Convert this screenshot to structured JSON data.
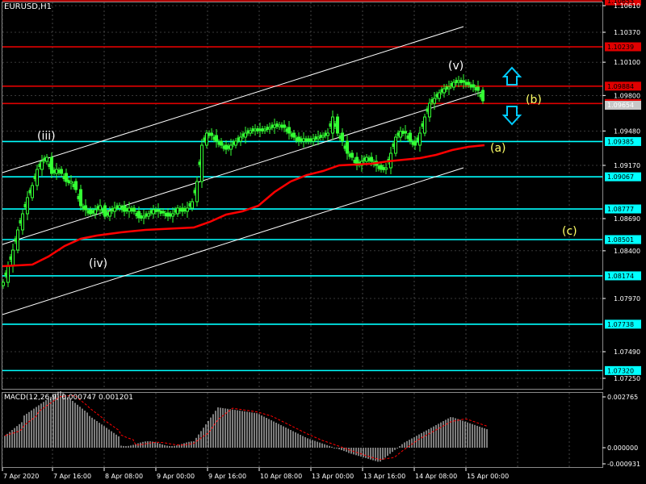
{
  "window": {
    "symbol_label": "EURUSD,H1",
    "indicator_label": "MACD(12,26,9) 0.000747 0.001201"
  },
  "price_axis": {
    "ticks": [
      "1.10610",
      "1.10370",
      "1.10100",
      "1.09800",
      "1.09480",
      "1.09170",
      "1.08690",
      "1.08400",
      "1.07970",
      "1.07490",
      "1.07250"
    ],
    "current_price": "1.09654"
  },
  "macd_axis": {
    "ticks": [
      "0.002765",
      "0.000000",
      "-0.000931"
    ]
  },
  "time_axis": {
    "labels": [
      "7 Apr 2020",
      "7 Apr 16:00",
      "8 Apr 08:00",
      "9 Apr 00:00",
      "9 Apr 16:00",
      "10 Apr 08:00",
      "13 Apr 00:00",
      "13 Apr 16:00",
      "14 Apr 08:00",
      "15 Apr 00:00"
    ]
  },
  "levels": [
    {
      "price": "1.10653",
      "kind": "resistance",
      "color": "#e00000"
    },
    {
      "price": "1.10239",
      "kind": "resistance",
      "color": "#e00000"
    },
    {
      "price": "1.09884",
      "kind": "resistance",
      "color": "#e00000"
    },
    {
      "price": "1.09728",
      "kind": "resistance",
      "color": "#e00000"
    },
    {
      "price": "1.09385",
      "kind": "support",
      "color": "#00ffff"
    },
    {
      "price": "1.09067",
      "kind": "support",
      "color": "#00ffff"
    },
    {
      "price": "1.08777",
      "kind": "support",
      "color": "#00ffff"
    },
    {
      "price": "1.08501",
      "kind": "support",
      "color": "#00ffff"
    },
    {
      "price": "1.08174",
      "kind": "support",
      "color": "#00ffff"
    },
    {
      "price": "1.07738",
      "kind": "support",
      "color": "#00ffff"
    },
    {
      "price": "1.07320",
      "kind": "support",
      "color": "#00ffff"
    }
  ],
  "wave_labels": [
    {
      "text": "(iii)",
      "color": "#ffffff"
    },
    {
      "text": "(iv)",
      "color": "#ffffff"
    },
    {
      "text": "(v)",
      "color": "#ffffff"
    },
    {
      "text": "(a)",
      "color": "#ffff66"
    },
    {
      "text": "(b)",
      "color": "#ffff66"
    },
    {
      "text": "(c)",
      "color": "#ffff66"
    }
  ],
  "arrows": [
    {
      "direction": "up",
      "icon": "arrow-up-icon",
      "color": "#00ccff"
    },
    {
      "direction": "down",
      "icon": "arrow-down-icon",
      "color": "#00ccff"
    }
  ],
  "colors": {
    "background": "#000000",
    "candles": "#33ff33",
    "moving_average": "#ff0000",
    "channel": "#ffffff",
    "grid": "#8a8a8a",
    "macd_histogram": "#cfcfcf",
    "macd_signal": "#ff0000"
  }
}
